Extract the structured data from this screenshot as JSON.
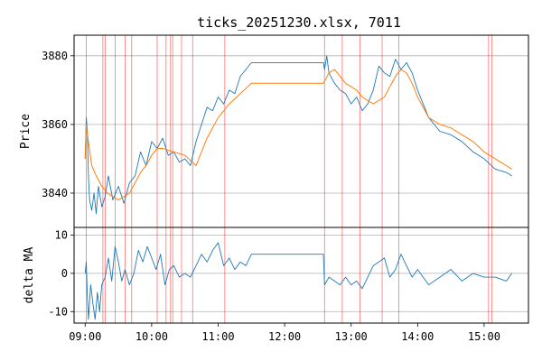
{
  "chart_data": {
    "type": "line",
    "title": "ticks_20251230.xlsx, 7011",
    "x_range": [
      "08:50",
      "15:40"
    ],
    "x_ticks": [
      "09:00",
      "10:00",
      "11:00",
      "12:00",
      "13:00",
      "14:00",
      "15:00"
    ],
    "grid": true,
    "signal_color": "#ff0000",
    "signal_times": [
      "09:01",
      "09:16",
      "09:18",
      "09:27",
      "09:36",
      "09:42",
      "10:05",
      "10:13",
      "10:17",
      "10:19",
      "10:27",
      "10:37",
      "11:06",
      "12:36",
      "12:52",
      "13:08",
      "13:28",
      "13:43",
      "15:04",
      "15:07"
    ],
    "panels": [
      {
        "id": "price",
        "ylabel": "Price",
        "ylim": [
          3830,
          3886
        ],
        "yticks": [
          3840,
          3860,
          3880
        ],
        "series": [
          {
            "color": "#1f77b4",
            "x": [
              "09:00",
              "09:01",
              "09:02",
              "09:03",
              "09:04",
              "09:06",
              "09:08",
              "09:10",
              "09:12",
              "09:15",
              "09:18",
              "09:21",
              "09:25",
              "09:30",
              "09:35",
              "09:40",
              "09:45",
              "09:50",
              "09:55",
              "10:00",
              "10:05",
              "10:10",
              "10:15",
              "10:20",
              "10:25",
              "10:30",
              "10:35",
              "10:40",
              "10:45",
              "10:50",
              "10:55",
              "11:00",
              "11:05",
              "11:10",
              "11:15",
              "11:20",
              "11:25",
              "11:30",
              "11:35",
              "12:35",
              "12:36",
              "12:38",
              "12:40",
              "12:45",
              "12:50",
              "12:55",
              "13:00",
              "13:05",
              "13:10",
              "13:15",
              "13:20",
              "13:25",
              "13:30",
              "13:35",
              "13:40",
              "13:45",
              "13:50",
              "13:55",
              "14:00",
              "14:10",
              "14:20",
              "14:30",
              "14:40",
              "14:50",
              "15:00",
              "15:10",
              "15:20",
              "15:25"
            ],
            "y": [
              3850,
              3862,
              3858,
              3845,
              3838,
              3835,
              3840,
              3834,
              3842,
              3836,
              3839,
              3845,
              3838,
              3842,
              3837,
              3843,
              3845,
              3852,
              3848,
              3855,
              3853,
              3856,
              3851,
              3852,
              3849,
              3850,
              3848,
              3855,
              3860,
              3865,
              3864,
              3868,
              3866,
              3870,
              3869,
              3874,
              3876,
              3878,
              3878,
              3878,
              3876,
              3880,
              3875,
              3872,
              3870,
              3869,
              3866,
              3868,
              3864,
              3866,
              3870,
              3877,
              3875,
              3874,
              3879,
              3876,
              3878,
              3875,
              3870,
              3862,
              3858,
              3857,
              3855,
              3852,
              3850,
              3847,
              3846,
              3845
            ]
          },
          {
            "color": "#ff7f0e",
            "x": [
              "09:00",
              "09:01",
              "09:03",
              "09:06",
              "09:10",
              "09:15",
              "09:20",
              "09:25",
              "09:30",
              "09:35",
              "09:40",
              "09:45",
              "09:50",
              "09:55",
              "10:00",
              "10:05",
              "10:10",
              "10:20",
              "10:30",
              "10:40",
              "10:50",
              "11:00",
              "11:10",
              "11:20",
              "11:30",
              "11:35",
              "12:35",
              "12:40",
              "12:45",
              "12:50",
              "12:55",
              "13:00",
              "13:05",
              "13:10",
              "13:20",
              "13:30",
              "13:40",
              "13:45",
              "13:50",
              "13:55",
              "14:00",
              "14:10",
              "14:20",
              "14:30",
              "14:40",
              "14:50",
              "15:00",
              "15:10",
              "15:25"
            ],
            "y": [
              3850,
              3860,
              3855,
              3848,
              3845,
              3842,
              3840,
              3839,
              3838,
              3839,
              3840,
              3843,
              3846,
              3848,
              3851,
              3853,
              3853,
              3852,
              3851,
              3848,
              3856,
              3862,
              3866,
              3869,
              3872,
              3872,
              3872,
              3875,
              3876,
              3874,
              3872,
              3871,
              3870,
              3868,
              3866,
              3868,
              3874,
              3876,
              3875,
              3872,
              3868,
              3862,
              3860,
              3859,
              3857,
              3855,
              3852,
              3850,
              3847
            ]
          }
        ]
      },
      {
        "id": "delta",
        "ylabel": "delta MA",
        "ylim": [
          -13,
          12
        ],
        "yticks": [
          -10,
          0,
          10
        ],
        "series": [
          {
            "color": "#1f77b4",
            "x": [
              "09:00",
              "09:01",
              "09:02",
              "09:03",
              "09:05",
              "09:07",
              "09:09",
              "09:11",
              "09:13",
              "09:15",
              "09:18",
              "09:21",
              "09:24",
              "09:27",
              "09:30",
              "09:33",
              "09:36",
              "09:40",
              "09:44",
              "09:48",
              "09:52",
              "09:56",
              "10:00",
              "10:04",
              "10:08",
              "10:12",
              "10:16",
              "10:20",
              "10:25",
              "10:30",
              "10:35",
              "10:40",
              "10:45",
              "10:50",
              "10:55",
              "11:00",
              "11:05",
              "11:10",
              "11:15",
              "11:20",
              "11:25",
              "11:30",
              "11:35",
              "12:35",
              "12:36",
              "12:40",
              "12:45",
              "12:50",
              "12:55",
              "13:00",
              "13:05",
              "13:10",
              "13:15",
              "13:20",
              "13:25",
              "13:30",
              "13:35",
              "13:40",
              "13:45",
              "13:50",
              "13:55",
              "14:00",
              "14:10",
              "14:20",
              "14:30",
              "14:40",
              "14:50",
              "15:00",
              "15:10",
              "15:20",
              "15:25"
            ],
            "y": [
              0,
              3,
              -6,
              -12,
              -3,
              -8,
              -12,
              -5,
              -10,
              -3,
              -1,
              4,
              -2,
              7,
              3,
              -2,
              1,
              -3,
              0,
              6,
              3,
              7,
              4,
              1,
              5,
              -3,
              1,
              2,
              -1,
              0,
              -1,
              2,
              5,
              3,
              6,
              8,
              2,
              4,
              1,
              3,
              2,
              5,
              5,
              5,
              -3,
              -1,
              -2,
              -3,
              -1,
              -3,
              -2,
              -4,
              -1,
              2,
              3,
              4,
              -1,
              1,
              5,
              2,
              -1,
              1,
              -3,
              -1,
              1,
              -2,
              0,
              -1,
              -1,
              -2,
              0
            ]
          }
        ]
      }
    ]
  }
}
